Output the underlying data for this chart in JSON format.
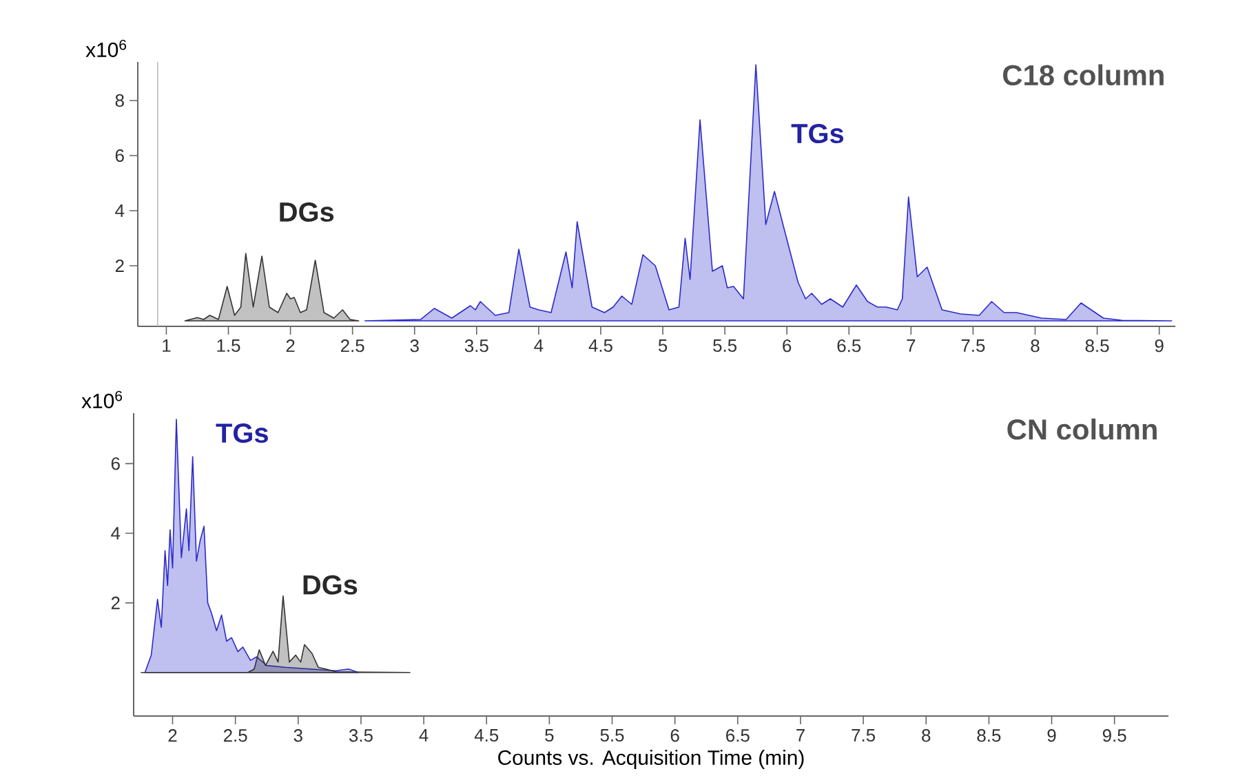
{
  "chart_data": [
    {
      "type": "area",
      "title": "C18 column",
      "ylabel": "x10$^{6}$",
      "xlim": [
        0.77,
        9.13
      ],
      "ylim": [
        -0.2,
        9.4
      ],
      "xticks": [
        1,
        1.5,
        2,
        2.5,
        3,
        3.5,
        4,
        4.5,
        5,
        5.5,
        6,
        6.5,
        7,
        7.5,
        8,
        8.5,
        9
      ],
      "yticks": [
        2,
        4,
        6,
        8
      ],
      "ref_lines": [
        {
          "axis": "x",
          "value": 0.93,
          "color": "#bbbbbb"
        }
      ],
      "series": [
        {
          "name": "DGs",
          "color": "#333333",
          "x": [
            1.15,
            1.25,
            1.3,
            1.35,
            1.42,
            1.49,
            1.55,
            1.6,
            1.64,
            1.7,
            1.77,
            1.83,
            1.9,
            1.97,
            2.0,
            2.03,
            2.08,
            2.13,
            2.2,
            2.27,
            2.35,
            2.42,
            2.48,
            2.55
          ],
          "values": [
            0,
            0.12,
            0.05,
            0.2,
            0.05,
            1.25,
            0.2,
            0.5,
            2.45,
            0.5,
            2.35,
            0.5,
            0.3,
            1.0,
            0.8,
            0.85,
            0.3,
            0.4,
            2.2,
            0.3,
            0.1,
            0.4,
            0.05,
            0
          ]
        },
        {
          "name": "TGs",
          "color": "#2a2acc",
          "x": [
            2.6,
            3.05,
            3.16,
            3.3,
            3.45,
            3.49,
            3.53,
            3.65,
            3.76,
            3.84,
            3.93,
            4.0,
            4.1,
            4.22,
            4.27,
            4.31,
            4.43,
            4.53,
            4.6,
            4.67,
            4.75,
            4.84,
            4.94,
            5.05,
            5.13,
            5.18,
            5.22,
            5.3,
            5.4,
            5.48,
            5.52,
            5.57,
            5.65,
            5.75,
            5.83,
            5.9,
            5.98,
            6.09,
            6.15,
            6.2,
            6.28,
            6.35,
            6.45,
            6.56,
            6.65,
            6.73,
            6.8,
            6.89,
            6.93,
            6.98,
            7.05,
            7.13,
            7.25,
            7.4,
            7.55,
            7.65,
            7.75,
            7.85,
            8.05,
            8.25,
            8.37,
            8.55,
            8.7,
            9.1
          ],
          "values": [
            0,
            0.05,
            0.45,
            0.1,
            0.55,
            0.4,
            0.7,
            0.2,
            0.3,
            2.6,
            0.5,
            0.4,
            0.3,
            2.5,
            1.2,
            3.6,
            0.5,
            0.3,
            0.5,
            0.9,
            0.6,
            2.4,
            2.0,
            0.4,
            0.5,
            3.0,
            1.5,
            7.3,
            1.8,
            2.0,
            1.2,
            1.25,
            0.8,
            9.3,
            3.5,
            4.7,
            3.3,
            1.4,
            0.8,
            1.0,
            0.6,
            0.8,
            0.5,
            1.3,
            0.7,
            0.5,
            0.5,
            0.4,
            0.8,
            4.5,
            1.6,
            1.95,
            0.4,
            0.25,
            0.2,
            0.7,
            0.3,
            0.3,
            0.1,
            0.05,
            0.65,
            0.1,
            0.02,
            0
          ]
        }
      ]
    },
    {
      "type": "area",
      "title": "CN column",
      "ylabel": "x10$^{6}$",
      "xlabel": "Counts vs. Acquisition Time (min)",
      "xlim": [
        1.69,
        9.93
      ],
      "ylim": [
        -1.25,
        7.45
      ],
      "xticks": [
        2,
        2.5,
        3,
        3.5,
        4,
        4.5,
        5,
        5.5,
        6,
        6.5,
        7,
        7.5,
        8,
        8.5,
        9,
        9.5
      ],
      "yticks": [
        2,
        4,
        6
      ],
      "series": [
        {
          "name": "TGs",
          "color": "#2a2acc",
          "x": [
            1.78,
            1.83,
            1.88,
            1.91,
            1.94,
            1.96,
            1.98,
            2.0,
            2.03,
            2.07,
            2.11,
            2.13,
            2.16,
            2.19,
            2.22,
            2.25,
            2.28,
            2.31,
            2.35,
            2.39,
            2.43,
            2.47,
            2.52,
            2.56,
            2.62,
            2.67,
            2.75,
            2.9,
            3.1,
            3.3,
            3.4,
            3.48
          ],
          "values": [
            0,
            0.5,
            2.1,
            1.3,
            3.5,
            2.5,
            4.1,
            3.0,
            7.27,
            3.3,
            4.7,
            3.5,
            6.2,
            3.2,
            3.8,
            4.2,
            2.0,
            1.7,
            1.2,
            1.65,
            0.9,
            1.0,
            0.6,
            0.73,
            0.35,
            0.45,
            0.2,
            0.15,
            0.1,
            0.05,
            0.1,
            0
          ]
        },
        {
          "name": "DGs",
          "color": "#333333",
          "x": [
            1.75,
            2.6,
            2.65,
            2.69,
            2.74,
            2.8,
            2.84,
            2.88,
            2.93,
            2.98,
            3.02,
            3.05,
            3.11,
            3.16,
            3.22,
            3.3,
            3.89
          ],
          "values": [
            0,
            0,
            0.1,
            0.65,
            0.2,
            0.61,
            0.3,
            2.2,
            0.3,
            0.5,
            0.3,
            0.8,
            0.55,
            0.15,
            0.1,
            0.02,
            0
          ]
        }
      ]
    }
  ]
}
